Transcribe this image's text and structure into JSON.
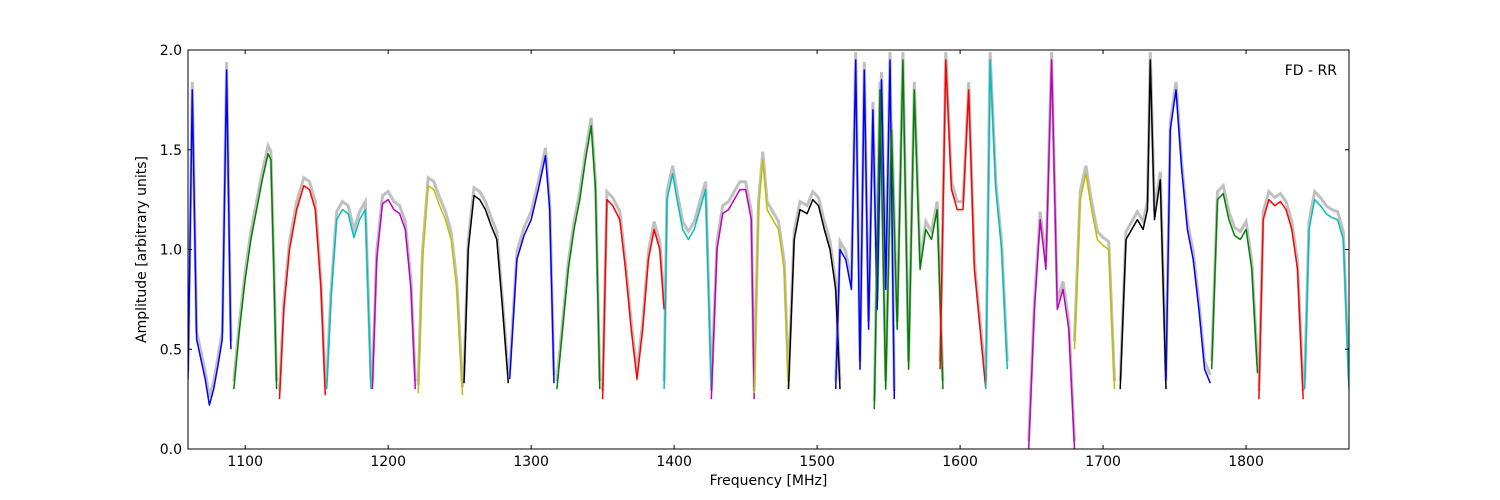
{
  "chart_data": {
    "type": "line",
    "annotation": "FD - RR",
    "xlabel": "Frequency [MHz]",
    "ylabel": "Amplitude [arbitrary units]",
    "xlim": [
      1060,
      1872
    ],
    "ylim": [
      0.0,
      2.0
    ],
    "x_ticks": [
      1100,
      1200,
      1300,
      1400,
      1500,
      1600,
      1700,
      1800
    ],
    "x_tick_labels": [
      "1100",
      "1200",
      "1300",
      "1400",
      "1500",
      "1600",
      "1700",
      "1800"
    ],
    "y_ticks": [
      0.0,
      0.5,
      1.0,
      1.5,
      2.0
    ],
    "y_tick_labels": [
      "0.0",
      "0.5",
      "1.0",
      "1.5",
      "2.0"
    ],
    "grid": false,
    "background_series_color": "#c0c0c0",
    "series": [
      {
        "color": "#0000ff",
        "x": [
          1060,
          1063,
          1066,
          1069,
          1072,
          1075,
          1078,
          1081,
          1084,
          1087,
          1090
        ],
        "y": [
          0.35,
          1.8,
          0.55,
          0.45,
          0.35,
          0.22,
          0.3,
          0.42,
          0.55,
          1.9,
          0.5
        ]
      },
      {
        "color": "#008000",
        "x": [
          1092,
          1096,
          1100,
          1104,
          1108,
          1112,
          1116,
          1118,
          1120,
          1122
        ],
        "y": [
          0.3,
          0.6,
          0.85,
          1.05,
          1.2,
          1.35,
          1.48,
          1.45,
          0.9,
          0.3
        ]
      },
      {
        "color": "#ff0000",
        "x": [
          1124,
          1127,
          1131,
          1136,
          1141,
          1145,
          1149,
          1153,
          1156
        ],
        "y": [
          0.25,
          0.7,
          1.0,
          1.2,
          1.32,
          1.3,
          1.2,
          0.8,
          0.27
        ]
      },
      {
        "color": "#00bfbf",
        "x": [
          1157,
          1160,
          1164,
          1168,
          1172,
          1176,
          1180,
          1184,
          1188
        ],
        "y": [
          0.3,
          0.75,
          1.15,
          1.2,
          1.18,
          1.06,
          1.15,
          1.2,
          0.3
        ]
      },
      {
        "color": "#bf00bf",
        "x": [
          1189,
          1192,
          1196,
          1200,
          1204,
          1208,
          1212,
          1216,
          1219
        ],
        "y": [
          0.3,
          0.95,
          1.23,
          1.25,
          1.2,
          1.18,
          1.1,
          0.8,
          0.3
        ]
      },
      {
        "color": "#bfbf00",
        "x": [
          1221,
          1224,
          1228,
          1232,
          1236,
          1240,
          1244,
          1248,
          1252
        ],
        "y": [
          0.28,
          0.95,
          1.32,
          1.3,
          1.22,
          1.15,
          1.05,
          0.8,
          0.27
        ]
      },
      {
        "color": "#000000",
        "x": [
          1253,
          1256,
          1260,
          1264,
          1268,
          1272,
          1276,
          1280,
          1284
        ],
        "y": [
          0.33,
          1.0,
          1.27,
          1.25,
          1.2,
          1.12,
          1.05,
          0.7,
          0.33
        ]
      },
      {
        "color": "#0000ff",
        "x": [
          1285,
          1290,
          1295,
          1300,
          1305,
          1310,
          1313,
          1316
        ],
        "y": [
          0.35,
          0.95,
          1.07,
          1.15,
          1.3,
          1.47,
          1.2,
          0.33
        ]
      },
      {
        "color": "#008000",
        "x": [
          1318,
          1322,
          1326,
          1330,
          1334,
          1338,
          1342,
          1345,
          1348
        ],
        "y": [
          0.3,
          0.6,
          0.9,
          1.1,
          1.25,
          1.45,
          1.62,
          1.3,
          0.3
        ]
      },
      {
        "color": "#ff0000",
        "x": [
          1350,
          1353,
          1357,
          1362,
          1366,
          1370,
          1374,
          1378,
          1382,
          1386,
          1390,
          1393
        ],
        "y": [
          0.25,
          1.25,
          1.22,
          1.15,
          0.9,
          0.6,
          0.35,
          0.6,
          0.95,
          1.1,
          1.0,
          0.7
        ]
      },
      {
        "color": "#00bfbf",
        "x": [
          1393,
          1395,
          1399,
          1402,
          1406,
          1410,
          1414,
          1418,
          1422,
          1426
        ],
        "y": [
          0.3,
          1.25,
          1.38,
          1.25,
          1.1,
          1.05,
          1.1,
          1.2,
          1.3,
          0.3
        ]
      },
      {
        "color": "#bf00bf",
        "x": [
          1426,
          1430,
          1434,
          1438,
          1442,
          1446,
          1450,
          1454,
          1456
        ],
        "y": [
          0.25,
          1.0,
          1.18,
          1.2,
          1.25,
          1.3,
          1.3,
          1.15,
          0.25
        ]
      },
      {
        "color": "#bfbf00",
        "x": [
          1456,
          1459,
          1462,
          1465,
          1469,
          1473,
          1477,
          1480
        ],
        "y": [
          0.28,
          1.2,
          1.45,
          1.2,
          1.15,
          1.1,
          0.9,
          0.3
        ]
      },
      {
        "color": "#000000",
        "x": [
          1480,
          1484,
          1488,
          1493,
          1497,
          1501,
          1505,
          1509,
          1513,
          1516
        ],
        "y": [
          0.3,
          1.05,
          1.2,
          1.18,
          1.25,
          1.22,
          1.1,
          1.0,
          0.8,
          0.3
        ]
      },
      {
        "color": "#0000ff",
        "x": [
          1513,
          1516,
          1520,
          1524,
          1527,
          1530,
          1533,
          1536,
          1539,
          1542,
          1545,
          1548,
          1551,
          1554
        ],
        "y": [
          0.3,
          1.0,
          0.95,
          0.8,
          1.95,
          0.4,
          1.9,
          0.6,
          1.7,
          0.7,
          1.85,
          0.8,
          1.95,
          0.25
        ]
      },
      {
        "color": "#008000",
        "x": [
          1540,
          1544,
          1548,
          1552,
          1556,
          1560,
          1564,
          1568,
          1572,
          1576,
          1580,
          1584,
          1588
        ],
        "y": [
          0.2,
          1.8,
          0.3,
          1.6,
          0.6,
          1.95,
          0.4,
          1.8,
          0.9,
          1.1,
          1.05,
          1.2,
          0.3
        ]
      },
      {
        "color": "#ff0000",
        "x": [
          1586,
          1590,
          1594,
          1598,
          1602,
          1606,
          1610,
          1614,
          1618
        ],
        "y": [
          0.4,
          1.95,
          1.3,
          1.2,
          1.2,
          1.8,
          0.9,
          0.6,
          0.3
        ]
      },
      {
        "color": "#00bfbf",
        "x": [
          1618,
          1621,
          1625,
          1629,
          1633
        ],
        "y": [
          0.3,
          1.95,
          1.3,
          1.0,
          0.4
        ]
      },
      {
        "color": "#bf00bf",
        "x": [
          1648,
          1652,
          1656,
          1660,
          1664,
          1668,
          1672,
          1676,
          1680
        ],
        "y": [
          0.0,
          0.7,
          1.15,
          0.9,
          1.95,
          0.7,
          0.8,
          0.6,
          0.0
        ]
      },
      {
        "color": "#bfbf00",
        "x": [
          1680,
          1684,
          1688,
          1692,
          1696,
          1700,
          1704,
          1708
        ],
        "y": [
          0.5,
          1.25,
          1.38,
          1.2,
          1.05,
          1.02,
          1.0,
          0.3
        ]
      },
      {
        "color": "#000000",
        "x": [
          1712,
          1716,
          1720,
          1724,
          1728,
          1731,
          1733,
          1736,
          1740,
          1744
        ],
        "y": [
          0.3,
          1.05,
          1.1,
          1.15,
          1.1,
          1.2,
          1.95,
          1.15,
          1.35,
          0.3
        ]
      },
      {
        "color": "#0000ff",
        "x": [
          1744,
          1747,
          1751,
          1755,
          1759,
          1763,
          1767,
          1771,
          1775
        ],
        "y": [
          0.35,
          1.6,
          1.8,
          1.4,
          1.1,
          0.95,
          0.7,
          0.4,
          0.33
        ]
      },
      {
        "color": "#008000",
        "x": [
          1776,
          1780,
          1784,
          1788,
          1792,
          1796,
          1800,
          1804,
          1808
        ],
        "y": [
          0.4,
          1.25,
          1.28,
          1.15,
          1.07,
          1.05,
          1.1,
          0.9,
          0.38
        ]
      },
      {
        "color": "#ff0000",
        "x": [
          1809,
          1812,
          1816,
          1820,
          1824,
          1828,
          1832,
          1836,
          1840
        ],
        "y": [
          0.25,
          1.15,
          1.25,
          1.22,
          1.24,
          1.2,
          1.1,
          0.9,
          0.25
        ]
      },
      {
        "color": "#00bfbf",
        "x": [
          1841,
          1844,
          1848,
          1852,
          1856,
          1860,
          1864,
          1868,
          1872
        ],
        "y": [
          0.3,
          1.1,
          1.25,
          1.22,
          1.18,
          1.16,
          1.15,
          1.05,
          0.3
        ]
      }
    ]
  }
}
